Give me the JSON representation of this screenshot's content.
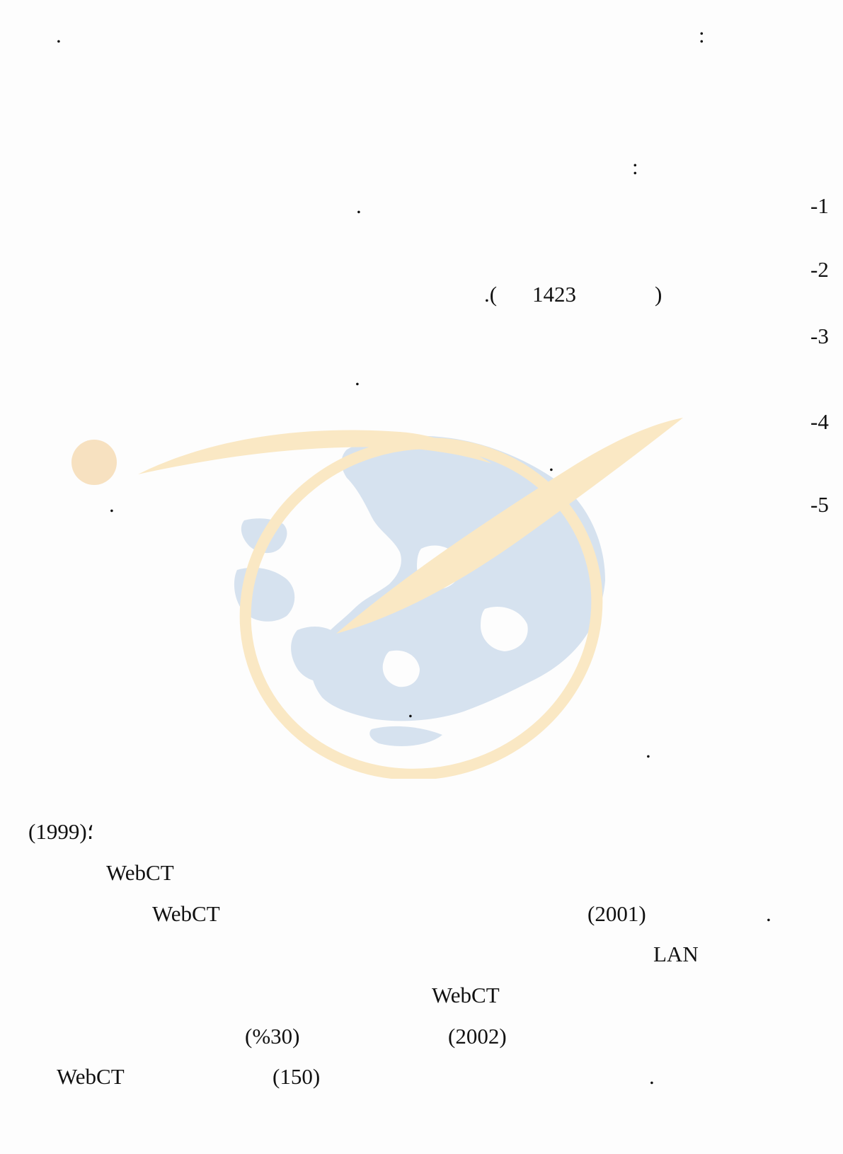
{
  "watermark": {
    "icon": "globe-orbit-logo-watermark",
    "orbit_color": "#fae8c4",
    "land_color": "#d6e2ef",
    "dot_color": "#f7e1c0"
  },
  "lines": [
    {
      "id": "top-period-left",
      "text": "."
    },
    {
      "id": "top-colon-right",
      "text": ":"
    },
    {
      "id": "section-colon",
      "text": ":"
    },
    {
      "id": "item-1-number",
      "text": "-1"
    },
    {
      "id": "item-1-period",
      "text": "."
    },
    {
      "id": "item-2-number",
      "text": "-2"
    },
    {
      "id": "item-2-citation-close",
      "text": ")"
    },
    {
      "id": "item-2-citation-year",
      "text": "1423"
    },
    {
      "id": "item-2-citation-open",
      "text": ".("
    },
    {
      "id": "item-3-number",
      "text": "-3"
    },
    {
      "id": "item-3-period",
      "text": "."
    },
    {
      "id": "item-4-number",
      "text": "-4"
    },
    {
      "id": "item-4-period",
      "text": "."
    },
    {
      "id": "item-5-number",
      "text": "-5"
    },
    {
      "id": "item-5-period",
      "text": "."
    },
    {
      "id": "period-mid",
      "text": "."
    },
    {
      "id": "period-lower",
      "text": "."
    },
    {
      "id": "year-1999",
      "text": "؛(1999)"
    },
    {
      "id": "webct-1",
      "text": "WebCT"
    },
    {
      "id": "webct-2",
      "text": "WebCT"
    },
    {
      "id": "year-2001",
      "text": "(2001)"
    },
    {
      "id": "period-2001",
      "text": "."
    },
    {
      "id": "lan",
      "text": "LAN"
    },
    {
      "id": "webct-3",
      "text": "WebCT"
    },
    {
      "id": "percent-30",
      "text": "(%30)"
    },
    {
      "id": "year-2002",
      "text": "(2002)"
    },
    {
      "id": "webct-4",
      "text": "WebCT"
    },
    {
      "id": "count-150",
      "text": "(150)"
    },
    {
      "id": "period-last",
      "text": "."
    }
  ]
}
